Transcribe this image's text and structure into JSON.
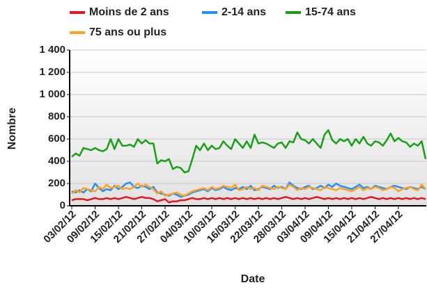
{
  "chart_data": {
    "type": "line",
    "categories": [
      "03/02/12",
      null,
      null,
      null,
      null,
      null,
      "09/02/12",
      null,
      null,
      null,
      null,
      null,
      "15/02/12",
      null,
      null,
      null,
      null,
      null,
      "21/02/12",
      null,
      null,
      null,
      null,
      null,
      "27/02/12",
      null,
      null,
      null,
      null,
      null,
      "04/03/12",
      null,
      null,
      null,
      null,
      null,
      "10/03/12",
      null,
      null,
      null,
      null,
      null,
      "16/03/12",
      null,
      null,
      null,
      null,
      null,
      "22/03/12",
      null,
      null,
      null,
      null,
      null,
      "28/03/12",
      null,
      null,
      null,
      null,
      null,
      "03/04/12",
      null,
      null,
      null,
      null,
      null,
      "09/04/12",
      null,
      null,
      null,
      null,
      null,
      "15/04/12",
      null,
      null,
      null,
      null,
      null,
      "21/04/12",
      null,
      null,
      null,
      null,
      null,
      "27/04/12",
      null,
      null,
      null,
      null,
      null,
      null,
      null
    ],
    "series": [
      {
        "name": "Moins de 2 ans",
        "color": "#e8141e",
        "values": [
          50,
          60,
          60,
          60,
          50,
          60,
          70,
          60,
          60,
          70,
          60,
          70,
          60,
          70,
          80,
          70,
          60,
          70,
          80,
          70,
          70,
          60,
          40,
          50,
          60,
          30,
          40,
          40,
          50,
          50,
          60,
          70,
          60,
          60,
          70,
          60,
          70,
          60,
          70,
          60,
          70,
          60,
          70,
          60,
          70,
          60,
          70,
          60,
          70,
          60,
          70,
          60,
          70,
          60,
          70,
          80,
          70,
          60,
          70,
          60,
          70,
          60,
          70,
          80,
          70,
          60,
          70,
          60,
          70,
          60,
          70,
          60,
          70,
          60,
          70,
          60,
          70,
          80,
          70,
          60,
          70,
          60,
          70,
          60,
          70,
          60,
          70,
          60,
          70,
          60,
          70,
          60
        ]
      },
      {
        "name": "2-14 ans",
        "color": "#1e90ff",
        "values": [
          130,
          120,
          140,
          120,
          150,
          130,
          200,
          160,
          130,
          150,
          140,
          180,
          150,
          170,
          200,
          210,
          170,
          160,
          180,
          170,
          150,
          170,
          120,
          110,
          100,
          90,
          110,
          100,
          80,
          90,
          100,
          120,
          130,
          140,
          150,
          130,
          160,
          140,
          150,
          170,
          150,
          140,
          160,
          150,
          170,
          150,
          180,
          140,
          150,
          170,
          160,
          150,
          180,
          160,
          170,
          150,
          210,
          180,
          160,
          150,
          170,
          180,
          150,
          160,
          180,
          160,
          190,
          170,
          200,
          180,
          170,
          160,
          150,
          170,
          190,
          160,
          170,
          150,
          180,
          170,
          160,
          150,
          170,
          180,
          170,
          160,
          150,
          170,
          160,
          150,
          170,
          150
        ]
      },
      {
        "name": "15-74 ans",
        "color": "#16a016",
        "values": [
          440,
          470,
          450,
          520,
          510,
          500,
          520,
          500,
          490,
          510,
          600,
          510,
          600,
          540,
          540,
          550,
          530,
          600,
          560,
          590,
          560,
          560,
          380,
          410,
          400,
          420,
          330,
          350,
          340,
          300,
          310,
          420,
          540,
          500,
          560,
          500,
          540,
          510,
          520,
          580,
          540,
          510,
          600,
          560,
          520,
          580,
          520,
          640,
          560,
          570,
          560,
          540,
          520,
          560,
          570,
          520,
          580,
          570,
          660,
          600,
          590,
          560,
          600,
          560,
          520,
          640,
          680,
          590,
          560,
          600,
          580,
          600,
          540,
          600,
          560,
          620,
          560,
          540,
          580,
          570,
          540,
          590,
          650,
          580,
          610,
          580,
          570,
          530,
          560,
          540,
          580,
          420
        ]
      },
      {
        "name": "75 ans ou plus",
        "color": "#ffa020",
        "values": [
          110,
          140,
          120,
          160,
          150,
          140,
          130,
          170,
          150,
          190,
          160,
          170,
          180,
          150,
          160,
          150,
          170,
          200,
          170,
          190,
          170,
          150,
          110,
          130,
          90,
          100,
          110,
          120,
          100,
          90,
          110,
          130,
          140,
          150,
          160,
          140,
          170,
          150,
          160,
          180,
          170,
          160,
          190,
          140,
          150,
          170,
          150,
          160,
          140,
          180,
          170,
          160,
          150,
          170,
          160,
          150,
          190,
          170,
          140,
          160,
          150,
          170,
          160,
          150,
          140,
          170,
          160,
          150,
          140,
          160,
          150,
          140,
          130,
          150,
          170,
          140,
          160,
          150,
          170,
          160,
          140,
          150,
          170,
          160,
          130,
          150,
          160,
          170,
          150,
          140,
          190,
          150
        ]
      }
    ],
    "ylim": [
      0,
      1400
    ],
    "yticks": [
      0,
      200,
      400,
      600,
      800,
      {
        "value": 1000,
        "label": "1 000"
      },
      {
        "value": 1200,
        "label": "1 200"
      },
      {
        "value": 1400,
        "label": "1 400"
      }
    ],
    "xlabel": "Date",
    "ylabel": "Nombre",
    "grid": true
  }
}
